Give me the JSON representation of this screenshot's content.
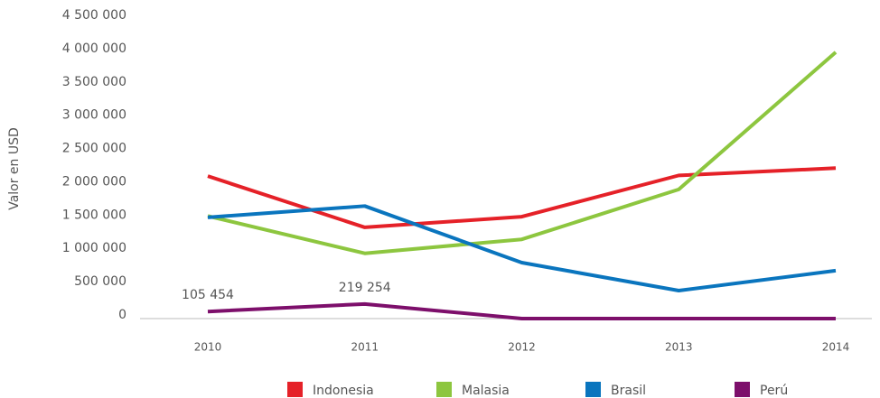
{
  "chart_data": {
    "type": "line",
    "y_label": "Valor en USD",
    "categories": [
      "2010",
      "2011",
      "2012",
      "2013",
      "2014"
    ],
    "series": [
      {
        "name": "Indonesia",
        "color": "#e52128",
        "values": [
          2140000,
          1370000,
          1530000,
          2150000,
          2260000
        ]
      },
      {
        "name": "Malasia",
        "color": "#8dc63f",
        "values": [
          1540000,
          980000,
          1190000,
          1940000,
          4000000
        ]
      },
      {
        "name": "Brasil",
        "color": "#0a75be",
        "values": [
          1520000,
          1690000,
          840000,
          420000,
          720000
        ]
      },
      {
        "name": "Perú",
        "color": "#7d0f6b",
        "values": [
          105454,
          219254,
          0,
          0,
          0
        ],
        "value_labels": [
          "105 454",
          "219 254",
          null,
          null,
          null
        ]
      }
    ],
    "ylim": [
      0,
      4500000
    ],
    "yticks": [
      0,
      {
        "value": 500000,
        "label": "500 000"
      },
      {
        "value": 1000000,
        "label": "1 000 000"
      },
      {
        "value": 1500000,
        "label": "1 500 000"
      },
      {
        "value": 2000000,
        "label": "2 000 000"
      },
      {
        "value": 2500000,
        "label": "2 500 000"
      },
      {
        "value": 3000000,
        "label": "3 000 000"
      },
      {
        "value": 3500000,
        "label": "3 500 000"
      },
      {
        "value": 4000000,
        "label": "4 000 000"
      },
      {
        "value": 4500000,
        "label": "4 500 000"
      }
    ],
    "grid": false,
    "legend": "bottom"
  }
}
